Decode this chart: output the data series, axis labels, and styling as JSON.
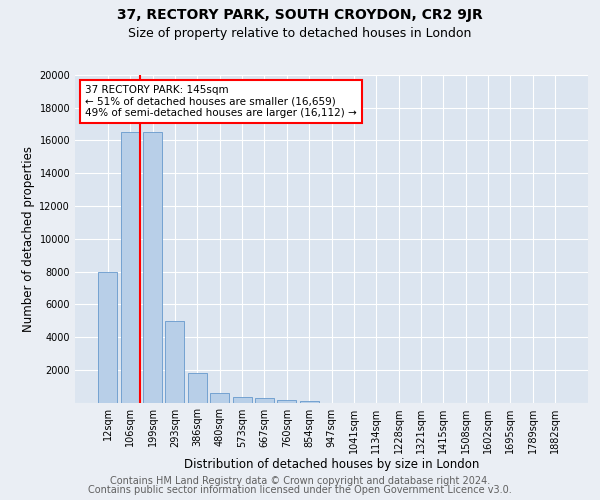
{
  "title_line1": "37, RECTORY PARK, SOUTH CROYDON, CR2 9JR",
  "title_line2": "Size of property relative to detached houses in London",
  "xlabel": "Distribution of detached houses by size in London",
  "ylabel": "Number of detached properties",
  "footer_line1": "Contains HM Land Registry data © Crown copyright and database right 2024.",
  "footer_line2": "Contains public sector information licensed under the Open Government Licence v3.0.",
  "bar_labels": [
    "12sqm",
    "106sqm",
    "199sqm",
    "293sqm",
    "386sqm",
    "480sqm",
    "573sqm",
    "667sqm",
    "760sqm",
    "854sqm",
    "947sqm",
    "1041sqm",
    "1134sqm",
    "1228sqm",
    "1321sqm",
    "1415sqm",
    "1508sqm",
    "1602sqm",
    "1695sqm",
    "1789sqm",
    "1882sqm"
  ],
  "bar_values": [
    8000,
    16500,
    16500,
    5000,
    1800,
    600,
    350,
    250,
    150,
    100,
    0,
    0,
    0,
    0,
    0,
    0,
    0,
    0,
    0,
    0,
    0
  ],
  "bar_color": "#b8cfe8",
  "bar_edgecolor": "#6699cc",
  "property_line_x": 1.45,
  "annotation_text": "37 RECTORY PARK: 145sqm\n← 51% of detached houses are smaller (16,659)\n49% of semi-detached houses are larger (16,112) →",
  "annotation_box_color": "white",
  "annotation_box_edgecolor": "red",
  "vline_color": "red",
  "ylim": [
    0,
    20000
  ],
  "yticks": [
    0,
    2000,
    4000,
    6000,
    8000,
    10000,
    12000,
    14000,
    16000,
    18000,
    20000
  ],
  "background_color": "#eaeef4",
  "plot_bg_color": "#dce5f0",
  "grid_color": "white",
  "title_fontsize": 10,
  "subtitle_fontsize": 9,
  "axis_label_fontsize": 8.5,
  "tick_fontsize": 7,
  "footer_fontsize": 7,
  "annotation_fontsize": 7.5
}
